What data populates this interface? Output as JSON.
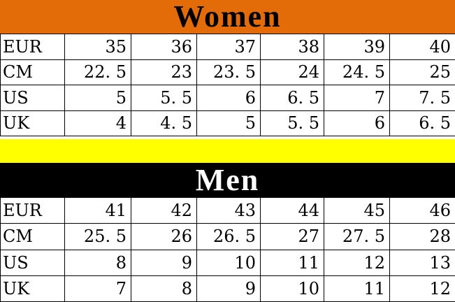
{
  "colors": {
    "women_header_bg": "#E36C09",
    "women_header_text": "#000000",
    "separator_bg": "#FFFF00",
    "men_header_bg": "#000000",
    "men_header_text": "#FFFFFF",
    "table_bg": "#FFFFFF",
    "grid_border": "#000000",
    "cell_text": "#000000"
  },
  "women": {
    "title": "Women",
    "rows": [
      {
        "label": "EUR",
        "values": [
          "35",
          "36",
          "37",
          "38",
          "39",
          "40"
        ]
      },
      {
        "label": "CM",
        "values": [
          "22. 5",
          "23",
          "23. 5",
          "24",
          "24. 5",
          "25"
        ]
      },
      {
        "label": "US",
        "values": [
          "5",
          "5. 5",
          "6",
          "6. 5",
          "7",
          "7. 5"
        ]
      },
      {
        "label": "UK",
        "values": [
          "4",
          "4. 5",
          "5",
          "5. 5",
          "6",
          "6. 5"
        ]
      }
    ]
  },
  "men": {
    "title": "Men",
    "rows": [
      {
        "label": "EUR",
        "values": [
          "41",
          "42",
          "43",
          "44",
          "45",
          "46"
        ]
      },
      {
        "label": "CM",
        "values": [
          "25. 5",
          "26",
          "26. 5",
          "27",
          "27. 5",
          "28"
        ]
      },
      {
        "label": "US",
        "values": [
          "8",
          "9",
          "10",
          "11",
          "12",
          "13"
        ]
      },
      {
        "label": "UK",
        "values": [
          "7",
          "8",
          "9",
          "10",
          "11",
          "12"
        ]
      }
    ]
  },
  "chart_data": [
    {
      "type": "table",
      "title": "Women",
      "row_labels": [
        "EUR",
        "CM",
        "US",
        "UK"
      ],
      "rows": [
        [
          35,
          36,
          37,
          38,
          39,
          40
        ],
        [
          22.5,
          23,
          23.5,
          24,
          24.5,
          25
        ],
        [
          5,
          5.5,
          6,
          6.5,
          7,
          7.5
        ],
        [
          4,
          4.5,
          5,
          5.5,
          6,
          6.5
        ]
      ]
    },
    {
      "type": "table",
      "title": "Men",
      "row_labels": [
        "EUR",
        "CM",
        "US",
        "UK"
      ],
      "rows": [
        [
          41,
          42,
          43,
          44,
          45,
          46
        ],
        [
          25.5,
          26,
          26.5,
          27,
          27.5,
          28
        ],
        [
          8,
          9,
          10,
          11,
          12,
          13
        ],
        [
          7,
          8,
          9,
          10,
          11,
          12
        ]
      ]
    }
  ]
}
